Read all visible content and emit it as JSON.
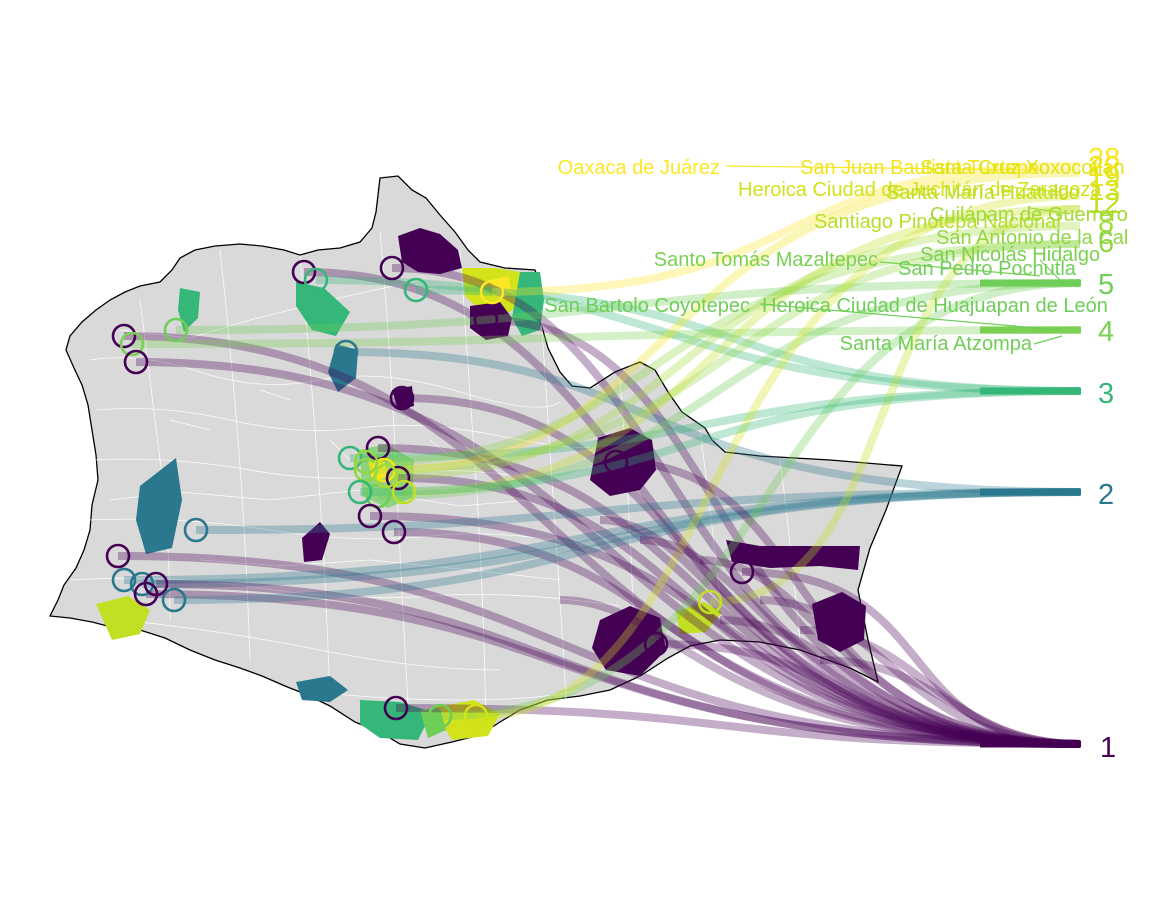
{
  "figure": {
    "kind": "flow map",
    "region": "Oaxaca municipalities",
    "background": "#ffffff",
    "map_fill": "#d9d9d9",
    "map_border": "#ffffff",
    "state_outline": "#000000",
    "palette": "viridis"
  },
  "ranks": [
    {
      "label": "1",
      "color": "#440154"
    },
    {
      "label": "2",
      "color": "#2a788e"
    },
    {
      "label": "3",
      "color": "#35b779"
    },
    {
      "label": "4",
      "color": "#7ad151"
    },
    {
      "label": "5",
      "color": "#6ece58"
    },
    {
      "label": "6",
      "color": "#8fd744"
    },
    {
      "label": "8",
      "color": "#a2da37"
    },
    {
      "label": "12",
      "color": "#c2df23"
    },
    {
      "label": "13",
      "color": "#d2e21b"
    },
    {
      "label": "19",
      "color": "#e2e418"
    },
    {
      "label": "22",
      "color": "#f1e51d"
    },
    {
      "label": "28",
      "color": "#fde725"
    }
  ],
  "labels": [
    {
      "id": "oaxaca-de-juarez",
      "text": "Oaxaca de Juárez",
      "color": "#fde725"
    },
    {
      "id": "san-juan-bautista-tuxtepec",
      "text": "San Juan Bautista Tuxtepec",
      "color": "#f1e51d"
    },
    {
      "id": "santa-cruz-xoxocotlan",
      "text": "Santa Cruz Xoxocotlán",
      "color": "#e2e418"
    },
    {
      "id": "heroica-ciudad-de-juchitan",
      "text": "Heroica Ciudad de Juchitán de Zaragoza",
      "color": "#d2e21b"
    },
    {
      "id": "santa-maria-huatulco",
      "text": "Santa María Huatulco",
      "color": "#c2df23"
    },
    {
      "id": "santiago-pinotepa-nacional",
      "text": "Santiago Pinotepa Nacional",
      "color": "#b5de2b"
    },
    {
      "id": "cuilapam-de-guerrero",
      "text": "Cuilápam de Guerrero",
      "color": "#a2da37"
    },
    {
      "id": "san-antonio-de-la-cal",
      "text": "San Antonio de la Cal",
      "color": "#8fd744"
    },
    {
      "id": "santo-tomas-mazaltepec",
      "text": "Santo Tomás Mazaltepec",
      "color": "#7ad151"
    },
    {
      "id": "san-nicolas-hidalgo",
      "text": "San Nicolás Hidalgo",
      "color": "#7ad151"
    },
    {
      "id": "san-pedro-pochutla",
      "text": "San Pedro Pochutla",
      "color": "#6ece58"
    },
    {
      "id": "san-bartolo-coyotepec",
      "text": "San Bartolo Coyotepec",
      "color": "#6ece58"
    },
    {
      "id": "heroica-ciudad-de-huajuapan",
      "text": "Heroica Ciudad de Huajuapan de León",
      "color": "#6ece58"
    },
    {
      "id": "santa-maria-atzompa",
      "text": "Santa María Atzompa",
      "color": "#6ece58"
    }
  ]
}
